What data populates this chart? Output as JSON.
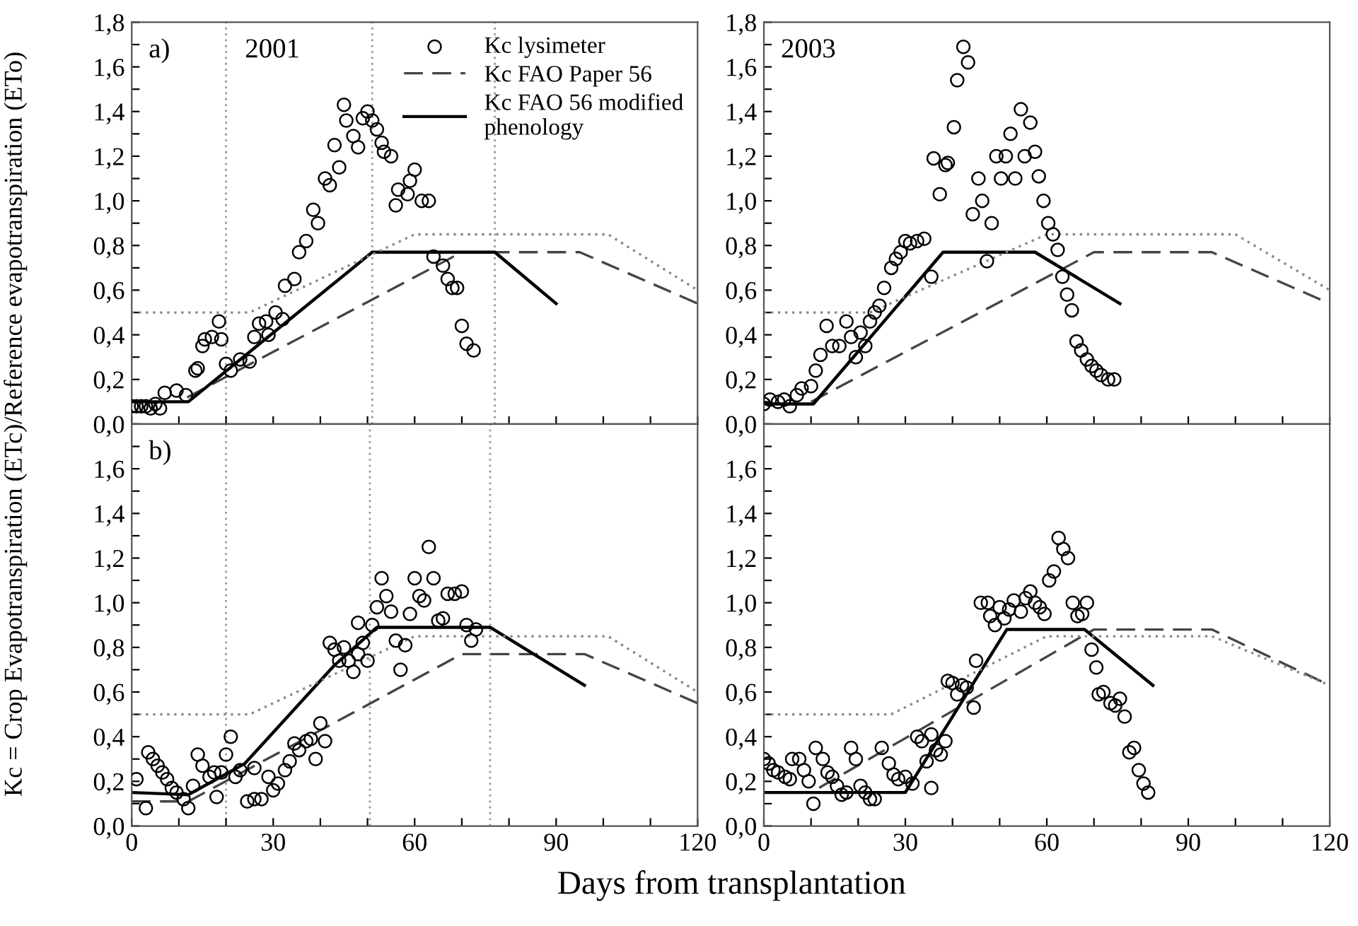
{
  "chart_data": [
    {
      "type": "scatter",
      "annotations": [
        "a)",
        "2001"
      ],
      "ylabel": "Kc = Crop Evapotranspiration (ETc)/Reference evapotranspiration (ETo)",
      "xlim": [
        0,
        120
      ],
      "ylim": [
        0,
        1.8
      ],
      "tick_labels": "y",
      "legend": "top right",
      "grid": false,
      "yticks": [
        {
          "value": 0,
          "label": "0,0"
        },
        {
          "value": 0.1,
          "label": null
        },
        {
          "value": 0.2,
          "label": "0,2"
        },
        {
          "value": 0.3,
          "label": null
        },
        {
          "value": 0.4,
          "label": "0,4"
        },
        {
          "value": 0.5,
          "label": null
        },
        {
          "value": 0.6,
          "label": "0,6"
        },
        {
          "value": 0.7,
          "label": null
        },
        {
          "value": 0.8,
          "label": "0,8"
        },
        {
          "value": 0.9,
          "label": null
        },
        {
          "value": 1.0,
          "label": "1,0"
        },
        {
          "value": 1.1,
          "label": null
        },
        {
          "value": 1.2,
          "label": "1,2"
        },
        {
          "value": 1.3,
          "label": null
        },
        {
          "value": 1.4,
          "label": "1,4"
        },
        {
          "value": 1.5,
          "label": null
        },
        {
          "value": 1.6,
          "label": "1,6"
        },
        {
          "value": 1.7,
          "label": null
        },
        {
          "value": 1.8,
          "label": "1,8"
        }
      ],
      "ref_lines": [
        {
          "axis": "x",
          "value": 20,
          "color": "#999999",
          "line_style": "dotted"
        },
        {
          "axis": "x",
          "value": 51,
          "color": "#999999",
          "line_style": "dotted"
        },
        {
          "axis": "x",
          "value": 77,
          "color": "#999999",
          "line_style": "dotted"
        }
      ],
      "series": [
        {
          "name": "Kc lysimeter",
          "type": "scatter",
          "marker": "circle",
          "color": "#000000",
          "x": [
            0,
            1,
            2,
            3,
            4,
            5,
            6,
            7,
            9.5,
            11.5,
            13.5,
            14,
            15,
            15.5,
            17,
            18.5,
            19,
            20,
            21,
            23,
            25,
            26,
            27,
            28.5,
            29,
            30.5,
            32,
            32.5,
            34.5,
            35.5,
            37,
            38.5,
            39.5,
            41,
            42,
            43,
            44,
            45,
            45.5,
            47,
            48,
            49,
            50,
            51,
            52,
            53,
            53.5,
            55,
            56,
            56.5,
            58.5,
            59,
            60,
            61.5,
            63,
            64,
            66,
            67,
            68,
            69,
            70,
            71,
            72.5
          ],
          "values": [
            0.08,
            0.08,
            0.08,
            0.08,
            0.07,
            0.09,
            0.07,
            0.14,
            0.15,
            0.13,
            0.24,
            0.25,
            0.35,
            0.38,
            0.39,
            0.46,
            0.38,
            0.27,
            0.24,
            0.29,
            0.28,
            0.39,
            0.45,
            0.46,
            0.4,
            0.5,
            0.47,
            0.62,
            0.65,
            0.77,
            0.82,
            0.96,
            0.9,
            1.1,
            1.07,
            1.25,
            1.15,
            1.43,
            1.36,
            1.29,
            1.24,
            1.37,
            1.4,
            1.36,
            1.32,
            1.26,
            1.22,
            1.2,
            0.98,
            1.05,
            1.03,
            1.09,
            1.14,
            1.0,
            1.0,
            0.75,
            0.71,
            0.65,
            0.61,
            0.61,
            0.44,
            0.36,
            0.33
          ]
        },
        {
          "name": "Kc FAO Paper 56",
          "type": "line",
          "line_style": "dashed",
          "color": "#444444",
          "x": [
            0,
            10,
            70,
            95,
            120
          ],
          "values": [
            0.1,
            0.1,
            0.77,
            0.77,
            0.54
          ]
        },
        {
          "name": "Kc FAO 56 modified\nphenology",
          "type": "line",
          "line_style": "solid",
          "color": "#000000",
          "x": [
            0,
            12,
            51,
            77,
            90
          ],
          "values": [
            0.1,
            0.1,
            0.77,
            0.77,
            0.54
          ]
        },
        {
          "type": "line",
          "line_style": "dotted",
          "color": "#888888",
          "x": [
            0,
            25,
            60,
            101,
            120
          ],
          "values": [
            0.5,
            0.5,
            0.85,
            0.85,
            0.6
          ]
        }
      ]
    },
    {
      "type": "scatter",
      "annotations": [
        "2003"
      ],
      "xlim": [
        0,
        120
      ],
      "ylim": [
        0,
        1.8
      ],
      "tick_labels": "y",
      "grid": false,
      "yticks": [
        {
          "value": 0,
          "label": "0,0"
        },
        {
          "value": 0.1,
          "label": null
        },
        {
          "value": 0.2,
          "label": "0,2"
        },
        {
          "value": 0.3,
          "label": null
        },
        {
          "value": 0.4,
          "label": "0,4"
        },
        {
          "value": 0.5,
          "label": null
        },
        {
          "value": 0.6,
          "label": "0,6"
        },
        {
          "value": 0.7,
          "label": null
        },
        {
          "value": 0.8,
          "label": "0,8"
        },
        {
          "value": 0.9,
          "label": null
        },
        {
          "value": 1.0,
          "label": "1,0"
        },
        {
          "value": 1.1,
          "label": null
        },
        {
          "value": 1.2,
          "label": "1,2"
        },
        {
          "value": 1.3,
          "label": null
        },
        {
          "value": 1.4,
          "label": "1,4"
        },
        {
          "value": 1.5,
          "label": null
        },
        {
          "value": 1.6,
          "label": "1,6"
        },
        {
          "value": 1.7,
          "label": null
        },
        {
          "value": 1.8,
          "label": "1,8"
        }
      ],
      "series": [
        {
          "type": "scatter",
          "marker": "circle",
          "color": "#000000",
          "x": [
            0,
            1.3,
            3,
            4.3,
            5.5,
            7,
            8,
            10,
            11,
            12,
            13.3,
            14.5,
            16,
            17.5,
            18.5,
            19.5,
            20.5,
            21.5,
            22.5,
            23.5,
            24.5,
            25.5,
            27,
            28,
            29,
            30,
            31,
            32.5,
            34,
            35.5,
            36,
            37.3,
            38.5,
            39,
            40.3,
            41,
            42.3,
            43.3,
            44.3,
            45.5,
            46.3,
            47.3,
            48.3,
            49.3,
            50.3,
            51.3,
            52.3,
            53.3,
            54.5,
            55.3,
            56.5,
            57.5,
            58.3,
            59.3,
            60.3,
            61.3,
            62.3,
            63.3,
            64.3,
            65.3,
            66.3,
            67.3,
            68.5,
            69.5,
            70.5,
            71.5,
            73,
            74.3
          ],
          "values": [
            0.09,
            0.11,
            0.1,
            0.11,
            0.08,
            0.13,
            0.16,
            0.17,
            0.24,
            0.31,
            0.44,
            0.35,
            0.35,
            0.46,
            0.39,
            0.3,
            0.41,
            0.35,
            0.46,
            0.5,
            0.53,
            0.61,
            0.7,
            0.74,
            0.77,
            0.82,
            0.81,
            0.82,
            0.83,
            0.66,
            1.19,
            1.03,
            1.16,
            1.17,
            1.33,
            1.54,
            1.69,
            1.62,
            0.94,
            1.1,
            1.0,
            0.73,
            0.9,
            1.2,
            1.1,
            1.2,
            1.3,
            1.1,
            1.41,
            1.2,
            1.35,
            1.22,
            1.11,
            1.0,
            0.9,
            0.85,
            0.78,
            0.66,
            0.58,
            0.51,
            0.37,
            0.33,
            0.29,
            0.26,
            0.24,
            0.22,
            0.2,
            0.2
          ]
        },
        {
          "type": "line",
          "line_style": "dashed",
          "color": "#444444",
          "x": [
            10,
            70,
            95,
            120
          ],
          "values": [
            0.1,
            0.77,
            0.77,
            0.54
          ]
        },
        {
          "type": "line",
          "line_style": "solid",
          "color": "#000000",
          "x": [
            0,
            10.5,
            38,
            57.5,
            75.5
          ],
          "values": [
            0.09,
            0.09,
            0.77,
            0.77,
            0.54
          ]
        },
        {
          "type": "line",
          "line_style": "dotted",
          "color": "#888888",
          "x": [
            0,
            22.5,
            60,
            100,
            120
          ],
          "values": [
            0.5,
            0.5,
            0.85,
            0.85,
            0.6
          ]
        }
      ]
    },
    {
      "type": "scatter",
      "annotations": [
        "b)"
      ],
      "xlabel": "Days from transplantation",
      "xlim": [
        0,
        120
      ],
      "ylim": [
        0,
        1.8
      ],
      "grid": false,
      "xticks": [
        {
          "value": 0,
          "label": "0"
        },
        {
          "value": 10,
          "label": null
        },
        {
          "value": 20,
          "label": null
        },
        {
          "value": 30,
          "label": "30"
        },
        {
          "value": 40,
          "label": null
        },
        {
          "value": 50,
          "label": null
        },
        {
          "value": 60,
          "label": "60"
        },
        {
          "value": 70,
          "label": null
        },
        {
          "value": 80,
          "label": null
        },
        {
          "value": 90,
          "label": "90"
        },
        {
          "value": 100,
          "label": null
        },
        {
          "value": 110,
          "label": null
        },
        {
          "value": 120,
          "label": "120"
        }
      ],
      "yticks": [
        {
          "value": 0,
          "label": "0,0"
        },
        {
          "value": 0.1,
          "label": null
        },
        {
          "value": 0.2,
          "label": "0,2"
        },
        {
          "value": 0.3,
          "label": null
        },
        {
          "value": 0.4,
          "label": "0,4"
        },
        {
          "value": 0.5,
          "label": null
        },
        {
          "value": 0.6,
          "label": "0,6"
        },
        {
          "value": 0.7,
          "label": null
        },
        {
          "value": 0.8,
          "label": "0,8"
        },
        {
          "value": 0.9,
          "label": null
        },
        {
          "value": 1.0,
          "label": "1,0"
        },
        {
          "value": 1.1,
          "label": null
        },
        {
          "value": 1.2,
          "label": "1,2"
        },
        {
          "value": 1.3,
          "label": null
        },
        {
          "value": 1.4,
          "label": "1,4"
        },
        {
          "value": 1.5,
          "label": null
        },
        {
          "value": 1.6,
          "label": "1,6"
        },
        {
          "value": 1.7,
          "label": null
        },
        {
          "value": 1.8,
          "label": null
        }
      ],
      "ref_lines": [
        {
          "axis": "x",
          "value": 20,
          "color": "#999999",
          "line_style": "dotted"
        },
        {
          "axis": "x",
          "value": 50.5,
          "color": "#999999",
          "line_style": "dotted"
        },
        {
          "axis": "x",
          "value": 76,
          "color": "#999999",
          "line_style": "dotted"
        }
      ],
      "series": [
        {
          "type": "scatter",
          "marker": "circle",
          "color": "#000000",
          "x": [
            1,
            3,
            3.5,
            4.5,
            5.5,
            6.5,
            7.5,
            8.5,
            9.5,
            11,
            12,
            13,
            14,
            15,
            16.5,
            17.5,
            18,
            19,
            20,
            21,
            22,
            23,
            24.5,
            26,
            26,
            27.5,
            29,
            30,
            31,
            32.5,
            33.5,
            34.5,
            35.5,
            37,
            38,
            39,
            40,
            41,
            42,
            43,
            44,
            45,
            46,
            47,
            48,
            48,
            49,
            50,
            51,
            52,
            53,
            54,
            55,
            56,
            57,
            58,
            59,
            60,
            61,
            62,
            63,
            64,
            65,
            66,
            67,
            68.5,
            70,
            71,
            72,
            73
          ],
          "values": [
            0.21,
            0.08,
            0.33,
            0.3,
            0.27,
            0.24,
            0.21,
            0.17,
            0.15,
            0.12,
            0.08,
            0.18,
            0.32,
            0.27,
            0.22,
            0.24,
            0.13,
            0.24,
            0.32,
            0.4,
            0.22,
            0.25,
            0.11,
            0.12,
            0.26,
            0.12,
            0.22,
            0.16,
            0.19,
            0.25,
            0.29,
            0.37,
            0.34,
            0.38,
            0.39,
            0.3,
            0.46,
            0.38,
            0.82,
            0.79,
            0.74,
            0.8,
            0.74,
            0.69,
            0.77,
            0.91,
            0.82,
            0.74,
            0.9,
            0.98,
            1.11,
            1.03,
            0.96,
            0.83,
            0.7,
            0.81,
            0.95,
            1.11,
            1.03,
            1.01,
            1.25,
            1.11,
            0.92,
            0.93,
            1.04,
            1.04,
            1.05,
            0.9,
            0.83,
            0.88
          ]
        },
        {
          "type": "line",
          "line_style": "dashed",
          "color": "#444444",
          "x": [
            0,
            12,
            70,
            96,
            120
          ],
          "values": [
            0.11,
            0.11,
            0.77,
            0.77,
            0.55
          ]
        },
        {
          "type": "line",
          "line_style": "solid",
          "color": "#000000",
          "x": [
            0,
            12,
            24,
            43,
            52,
            76,
            96
          ],
          "values": [
            0.15,
            0.14,
            0.28,
            0.72,
            0.89,
            0.89,
            0.63
          ]
        },
        {
          "type": "line",
          "line_style": "dotted",
          "color": "#888888",
          "x": [
            0,
            25,
            60,
            101,
            120
          ],
          "values": [
            0.5,
            0.5,
            0.85,
            0.85,
            0.6
          ]
        }
      ]
    },
    {
      "type": "scatter",
      "xlim": [
        0,
        120
      ],
      "ylim": [
        0,
        1.8
      ],
      "grid": false,
      "xticks": [
        {
          "value": 0,
          "label": "0"
        },
        {
          "value": 10,
          "label": null
        },
        {
          "value": 20,
          "label": null
        },
        {
          "value": 30,
          "label": "30"
        },
        {
          "value": 40,
          "label": null
        },
        {
          "value": 50,
          "label": null
        },
        {
          "value": 60,
          "label": "60"
        },
        {
          "value": 70,
          "label": null
        },
        {
          "value": 80,
          "label": null
        },
        {
          "value": 90,
          "label": "90"
        },
        {
          "value": 100,
          "label": null
        },
        {
          "value": 110,
          "label": null
        },
        {
          "value": 120,
          "label": "120"
        }
      ],
      "yticks": [
        {
          "value": 0,
          "label": "0,0"
        },
        {
          "value": 0.1,
          "label": null
        },
        {
          "value": 0.2,
          "label": "0,2"
        },
        {
          "value": 0.3,
          "label": null
        },
        {
          "value": 0.4,
          "label": "0,4"
        },
        {
          "value": 0.5,
          "label": null
        },
        {
          "value": 0.6,
          "label": "0,6"
        },
        {
          "value": 0.7,
          "label": null
        },
        {
          "value": 0.8,
          "label": "0,8"
        },
        {
          "value": 0.9,
          "label": null
        },
        {
          "value": 1.0,
          "label": "1,0"
        },
        {
          "value": 1.1,
          "label": null
        },
        {
          "value": 1.2,
          "label": "1,2"
        },
        {
          "value": 1.3,
          "label": null
        },
        {
          "value": 1.4,
          "label": "1,4"
        },
        {
          "value": 1.5,
          "label": null
        },
        {
          "value": 1.6,
          "label": "1,6"
        },
        {
          "value": 1.7,
          "label": null
        },
        {
          "value": 1.8,
          "label": null
        }
      ],
      "series": [
        {
          "type": "scatter",
          "marker": "circle",
          "color": "#000000",
          "x": [
            0,
            1,
            2,
            3,
            4.5,
            5.5,
            6,
            7.5,
            8.5,
            9.5,
            10.5,
            11,
            12.5,
            13.5,
            14.5,
            15.5,
            16.5,
            17.5,
            18.5,
            19.5,
            20.5,
            21.5,
            22.5,
            23.5,
            25,
            26.5,
            27.5,
            28.5,
            30,
            31.5,
            32.5,
            33.5,
            34.5,
            35.5,
            35.5,
            36.5,
            37.5,
            38.5,
            39,
            40,
            41,
            42,
            43,
            44.5,
            45,
            46,
            47.5,
            48,
            49,
            50,
            51,
            52,
            53,
            54.5,
            55.5,
            56.5,
            57.5,
            58.5,
            59.5,
            60.5,
            61.5,
            62.5,
            63.5,
            64.5,
            65.5,
            66.5,
            67.5,
            68.5,
            69.5,
            70.5,
            71,
            72,
            73.5,
            74.5,
            75.5,
            76.5,
            77.5,
            78.5,
            79.5,
            80.5,
            81.5
          ],
          "values": [
            0.3,
            0.28,
            0.25,
            0.24,
            0.22,
            0.21,
            0.3,
            0.3,
            0.25,
            0.2,
            0.1,
            0.35,
            0.3,
            0.24,
            0.22,
            0.18,
            0.14,
            0.15,
            0.35,
            0.3,
            0.18,
            0.15,
            0.12,
            0.12,
            0.35,
            0.28,
            0.23,
            0.21,
            0.22,
            0.19,
            0.4,
            0.38,
            0.29,
            0.17,
            0.41,
            0.34,
            0.32,
            0.38,
            0.65,
            0.64,
            0.59,
            0.63,
            0.62,
            0.53,
            0.74,
            1.0,
            1.0,
            0.94,
            0.9,
            0.98,
            0.93,
            0.97,
            1.01,
            0.96,
            1.02,
            1.05,
            1.0,
            0.98,
            0.95,
            1.1,
            1.14,
            1.29,
            1.24,
            1.2,
            1.0,
            0.94,
            0.95,
            1.0,
            0.79,
            0.71,
            0.59,
            0.6,
            0.55,
            0.54,
            0.57,
            0.49,
            0.33,
            0.35,
            0.25,
            0.19,
            0.15
          ]
        },
        {
          "type": "line",
          "line_style": "dashed",
          "color": "#444444",
          "x": [
            0,
            10,
            70,
            95,
            120
          ],
          "values": [
            0.15,
            0.15,
            0.88,
            0.88,
            0.63
          ]
        },
        {
          "type": "line",
          "line_style": "solid",
          "color": "#000000",
          "x": [
            0,
            30,
            51.5,
            68,
            82.5
          ],
          "values": [
            0.15,
            0.15,
            0.88,
            0.88,
            0.63
          ]
        },
        {
          "type": "line",
          "line_style": "dotted",
          "color": "#888888",
          "x": [
            0,
            27,
            60,
            95,
            120
          ],
          "values": [
            0.5,
            0.5,
            0.85,
            0.85,
            0.63
          ]
        }
      ]
    }
  ]
}
